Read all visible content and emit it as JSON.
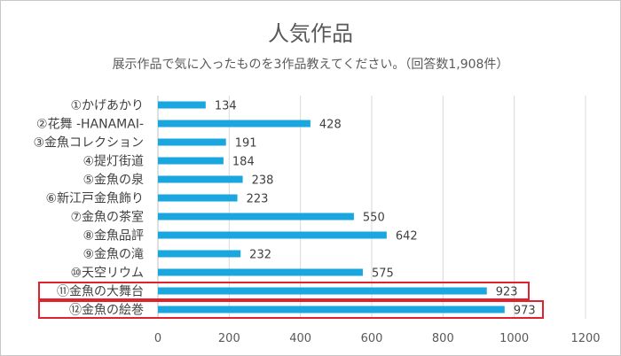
{
  "chart_data": {
    "type": "bar",
    "orientation": "horizontal",
    "title": "人気作品",
    "subtitle": "展示作品で気に入ったものを3作品教えてください。（回答数1,908件）",
    "categories": [
      "①かげあかり",
      "②花舞 -HANAMAI-",
      "③金魚コレクション",
      "④提灯街道",
      "⑤金魚の泉",
      "⑥新江戸金魚飾り",
      "⑦金魚の茶室",
      "⑧金魚品評",
      "⑨金魚の滝",
      "⑩天空リウム",
      "⑪金魚の大舞台",
      "⑫金魚の絵巻"
    ],
    "values": [
      134,
      428,
      191,
      184,
      238,
      223,
      550,
      642,
      232,
      575,
      923,
      973
    ],
    "xlim": [
      0,
      1200
    ],
    "xticks": [
      0,
      200,
      400,
      600,
      800,
      1000,
      1200
    ],
    "grid": "vertical",
    "highlighted_categories": [
      "⑪金魚の大舞台",
      "⑫金魚の絵巻"
    ],
    "colors": {
      "bar": "#1aa7df",
      "highlight_box": "#e0212e",
      "grid": "#d9d9d9"
    }
  }
}
